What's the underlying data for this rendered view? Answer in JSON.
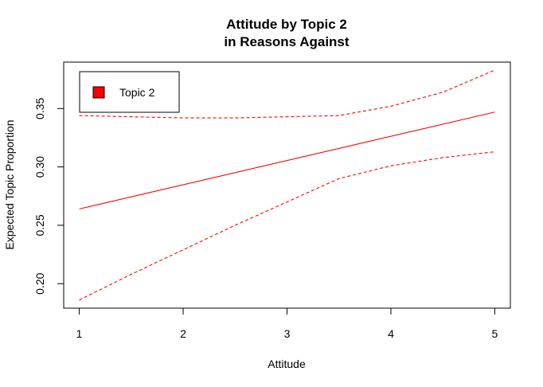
{
  "chart_data": {
    "type": "line",
    "title_line1": "Attitude by Topic 2",
    "title_line2": "in Reasons Against",
    "xlabel": "Attitude",
    "ylabel": "Expected Topic Proportion",
    "xlim": [
      0.85,
      5.15
    ],
    "ylim": [
      0.179,
      0.3898
    ],
    "x_ticks": [
      1,
      2,
      3,
      4,
      5
    ],
    "y_ticks": [
      0.2,
      0.25,
      0.3,
      0.35
    ],
    "y_tick_labels": [
      "0.20",
      "0.25",
      "0.30",
      "0.35"
    ],
    "legend": {
      "position": "top-left",
      "label": "Topic 2",
      "color": "#ff0000"
    },
    "color": "#ff0000",
    "series": [
      {
        "name": "Topic 2",
        "style": "solid",
        "x": [
          1,
          5
        ],
        "y": [
          0.264,
          0.347
        ]
      },
      {
        "style": "dashed",
        "x": [
          1.0,
          1.5,
          2.0,
          2.5,
          3.0,
          3.5,
          4.0,
          4.5,
          5.0
        ],
        "y": [
          0.344,
          0.343,
          0.342,
          0.342,
          0.343,
          0.344,
          0.352,
          0.364,
          0.383
        ]
      },
      {
        "style": "dashed",
        "x": [
          1.0,
          1.5,
          2.0,
          2.5,
          3.0,
          3.5,
          4.0,
          4.5,
          5.0
        ],
        "y": [
          0.186,
          0.208,
          0.229,
          0.25,
          0.27,
          0.29,
          0.301,
          0.308,
          0.313
        ]
      }
    ]
  }
}
